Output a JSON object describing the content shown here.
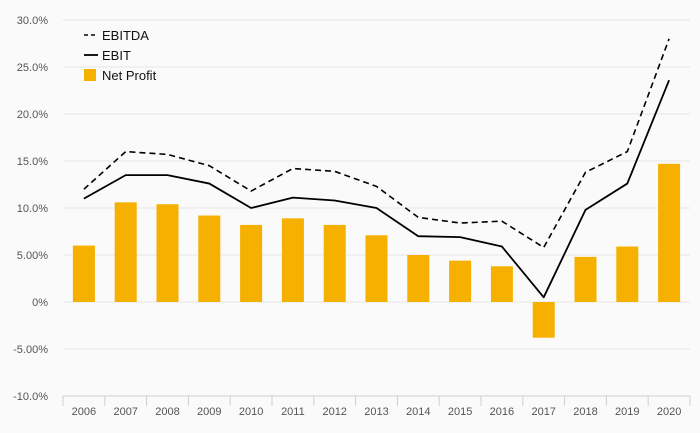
{
  "chart_data": {
    "type": "bar",
    "categories": [
      "2006",
      "2007",
      "2008",
      "2009",
      "2010",
      "2011",
      "2012",
      "2013",
      "2014",
      "2015",
      "2016",
      "2017",
      "2018",
      "2019",
      "2020"
    ],
    "series": [
      {
        "name": "EBITDA",
        "type": "line",
        "style": "dashed",
        "color": "#000000",
        "values": [
          12.0,
          16.0,
          15.7,
          14.5,
          11.8,
          14.2,
          13.9,
          12.3,
          9.0,
          8.4,
          8.6,
          5.8,
          13.8,
          16.0,
          28.0
        ]
      },
      {
        "name": "EBIT",
        "type": "line",
        "style": "solid",
        "color": "#000000",
        "values": [
          11.0,
          13.5,
          13.5,
          12.6,
          10.0,
          11.1,
          10.8,
          10.0,
          7.0,
          6.9,
          5.9,
          0.5,
          9.8,
          12.6,
          23.6
        ]
      },
      {
        "name": "Net Profit",
        "type": "bar",
        "color": "#f5b000",
        "values": [
          6.0,
          10.6,
          10.4,
          9.2,
          8.2,
          8.9,
          8.2,
          7.1,
          5.0,
          4.4,
          3.8,
          -3.8,
          4.8,
          5.9,
          14.7
        ]
      }
    ],
    "y_ticks": [
      "-10.0%",
      "-5.00%",
      "0%",
      "5.00%",
      "10.0%",
      "15.0%",
      "20.0%",
      "25.0%",
      "30.0%"
    ],
    "y_tick_values": [
      -10,
      -5,
      0,
      5,
      10,
      15,
      20,
      25,
      30
    ],
    "ylim": [
      -10,
      30
    ],
    "grid": true,
    "legend": "top-left",
    "title": "",
    "xlabel": "",
    "ylabel": ""
  },
  "colors": {
    "background": "#fafafa",
    "grid": "#e6e6e6",
    "axis": "#cfcfcf",
    "bar": "#f5b000",
    "line": "#000000"
  }
}
